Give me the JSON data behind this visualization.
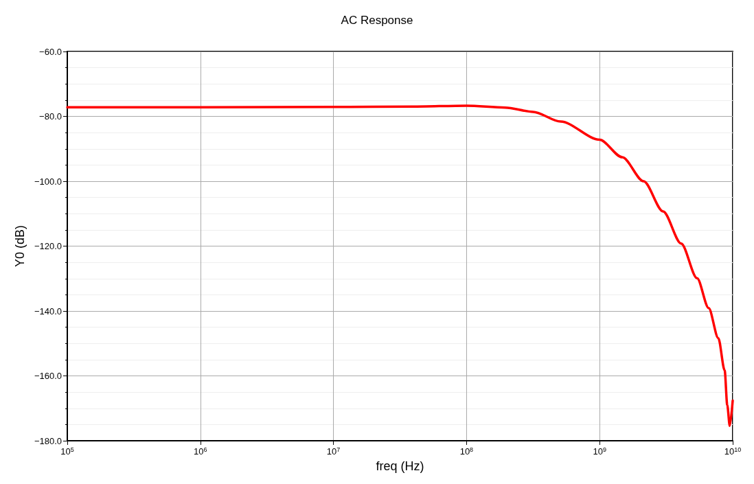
{
  "chart_data": {
    "type": "line",
    "title": "AC Response",
    "xlabel": "freq (Hz)",
    "ylabel": "Y0 (dB)",
    "log": "x",
    "grid": true,
    "marker": "none",
    "line_style": "solid",
    "xlim": [
      100000,
      10000000000
    ],
    "xticks": [
      {
        "value": 100000,
        "label": "10$^{5}$"
      },
      {
        "value": 1000000,
        "label": "10$^{6}$"
      },
      {
        "value": 10000000,
        "label": "10$^{7}$"
      },
      {
        "value": 100000000,
        "label": "10$^{8}$"
      },
      {
        "value": 1000000000,
        "label": "10$^{9}$"
      },
      {
        "value": 10000000000,
        "label": "10$^{10}$"
      }
    ],
    "ylim": [
      -180,
      -60
    ],
    "yticks": [
      {
        "value": -180,
        "label": "−180.0"
      },
      {
        "value": -160,
        "label": "−160.0"
      },
      {
        "value": -140,
        "label": "−140.0"
      },
      {
        "value": -120,
        "label": "−120.0"
      },
      {
        "value": -100,
        "label": "−100.0"
      },
      {
        "value": -80,
        "label": "−80.0"
      },
      {
        "value": -60,
        "label": "−60.0"
      }
    ],
    "series": [
      {
        "color": "#ff0000",
        "x": [
          100000,
          1000000,
          10000000,
          39000000,
          100000000,
          195000000,
          316000000,
          510000000,
          1000000000,
          1480000000,
          2140000000,
          3000000000,
          4100000000,
          5400000000,
          6600000000,
          7800000000,
          8700000000,
          9100000000,
          9500000000,
          10000000000
        ],
        "values": [
          -77.2,
          -77.2,
          -77.1,
          -77.0,
          -76.7,
          -77.3,
          -78.6,
          -81.6,
          -87.2,
          -92.6,
          -100.0,
          -109.3,
          -119.2,
          -129.9,
          -139.1,
          -148.4,
          -158.3,
          -169.0,
          -175.4,
          -167.6
        ]
      }
    ]
  }
}
